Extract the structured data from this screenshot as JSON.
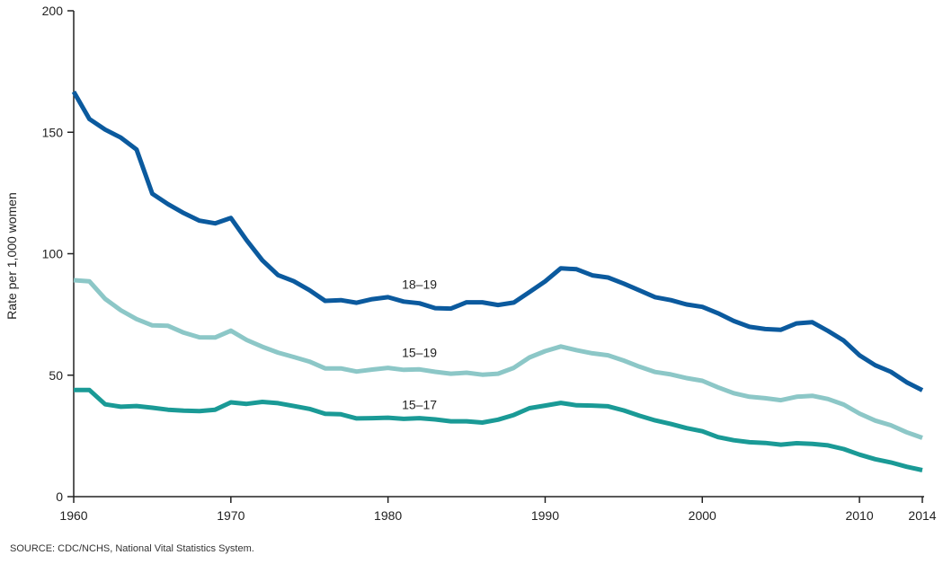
{
  "chart_data": {
    "type": "line",
    "title": "",
    "xlabel": "",
    "ylabel": "Rate per 1,000 women",
    "xlim": [
      1960,
      2014
    ],
    "ylim": [
      0,
      200
    ],
    "xticks": [
      1960,
      1970,
      1980,
      1990,
      2000,
      2010,
      2014
    ],
    "yticks": [
      0,
      50,
      100,
      150,
      200
    ],
    "grid": false,
    "legend": "none",
    "x": [
      1960,
      1961,
      1962,
      1963,
      1964,
      1965,
      1966,
      1967,
      1968,
      1969,
      1970,
      1971,
      1972,
      1973,
      1974,
      1975,
      1976,
      1977,
      1978,
      1979,
      1980,
      1981,
      1982,
      1983,
      1984,
      1985,
      1986,
      1987,
      1988,
      1989,
      1990,
      1991,
      1992,
      1993,
      1994,
      1995,
      1996,
      1997,
      1998,
      1999,
      2000,
      2001,
      2002,
      2003,
      2004,
      2005,
      2006,
      2007,
      2008,
      2009,
      2010,
      2011,
      2012,
      2013,
      2014
    ],
    "series": [
      {
        "name": "18–19",
        "color": "#0b5a9e",
        "values": [
          166.7,
          155.4,
          151.1,
          147.8,
          142.9,
          124.7,
          120.4,
          116.7,
          113.6,
          112.5,
          114.7,
          105.6,
          97.3,
          91.2,
          88.7,
          85.0,
          80.6,
          80.9,
          79.8,
          81.3,
          82.1,
          80.3,
          79.6,
          77.6,
          77.4,
          80.0,
          80.0,
          78.9,
          79.9,
          84.2,
          88.6,
          94.0,
          93.6,
          91.1,
          90.2,
          87.7,
          84.9,
          82.1,
          80.9,
          79.1,
          78.1,
          75.5,
          72.3,
          69.9,
          69.0,
          68.7,
          71.3,
          71.8,
          68.2,
          64.2,
          58.2,
          54.1,
          51.4,
          47.1,
          43.8
        ]
      },
      {
        "name": "15–19",
        "color": "#8cc7c7",
        "values": [
          89.1,
          88.6,
          81.4,
          76.7,
          73.1,
          70.5,
          70.3,
          67.5,
          65.6,
          65.5,
          68.3,
          64.5,
          61.7,
          59.3,
          57.5,
          55.6,
          52.8,
          52.8,
          51.5,
          52.3,
          53.0,
          52.2,
          52.4,
          51.4,
          50.6,
          51.0,
          50.2,
          50.6,
          53.0,
          57.3,
          59.9,
          61.8,
          60.3,
          59.0,
          58.2,
          56.0,
          53.5,
          51.3,
          50.3,
          48.8,
          47.7,
          45.0,
          42.6,
          41.1,
          40.5,
          39.7,
          41.1,
          41.5,
          40.2,
          37.9,
          34.2,
          31.3,
          29.4,
          26.5,
          24.2
        ]
      },
      {
        "name": "15–17",
        "color": "#1a9a96",
        "values": [
          43.9,
          43.9,
          38.0,
          37.0,
          37.3,
          36.6,
          35.8,
          35.4,
          35.2,
          35.8,
          38.8,
          38.2,
          39.0,
          38.5,
          37.3,
          36.1,
          34.1,
          33.9,
          32.2,
          32.3,
          32.5,
          32.0,
          32.3,
          31.8,
          31.0,
          31.0,
          30.5,
          31.7,
          33.6,
          36.4,
          37.5,
          38.6,
          37.6,
          37.5,
          37.2,
          35.5,
          33.3,
          31.4,
          29.9,
          28.2,
          26.9,
          24.5,
          23.2,
          22.4,
          22.1,
          21.4,
          22.0,
          21.7,
          21.1,
          19.6,
          17.3,
          15.4,
          14.1,
          12.3,
          10.9
        ]
      }
    ],
    "annotations": [
      {
        "text": "18–19",
        "x": 1982,
        "y": 85.5
      },
      {
        "text": "15–19",
        "x": 1982,
        "y": 57.5
      },
      {
        "text": "15–17",
        "x": 1982,
        "y": 36.0
      }
    ]
  },
  "footer": {
    "source": "SOURCE: CDC/NCHS, National Vital Statistics System."
  }
}
